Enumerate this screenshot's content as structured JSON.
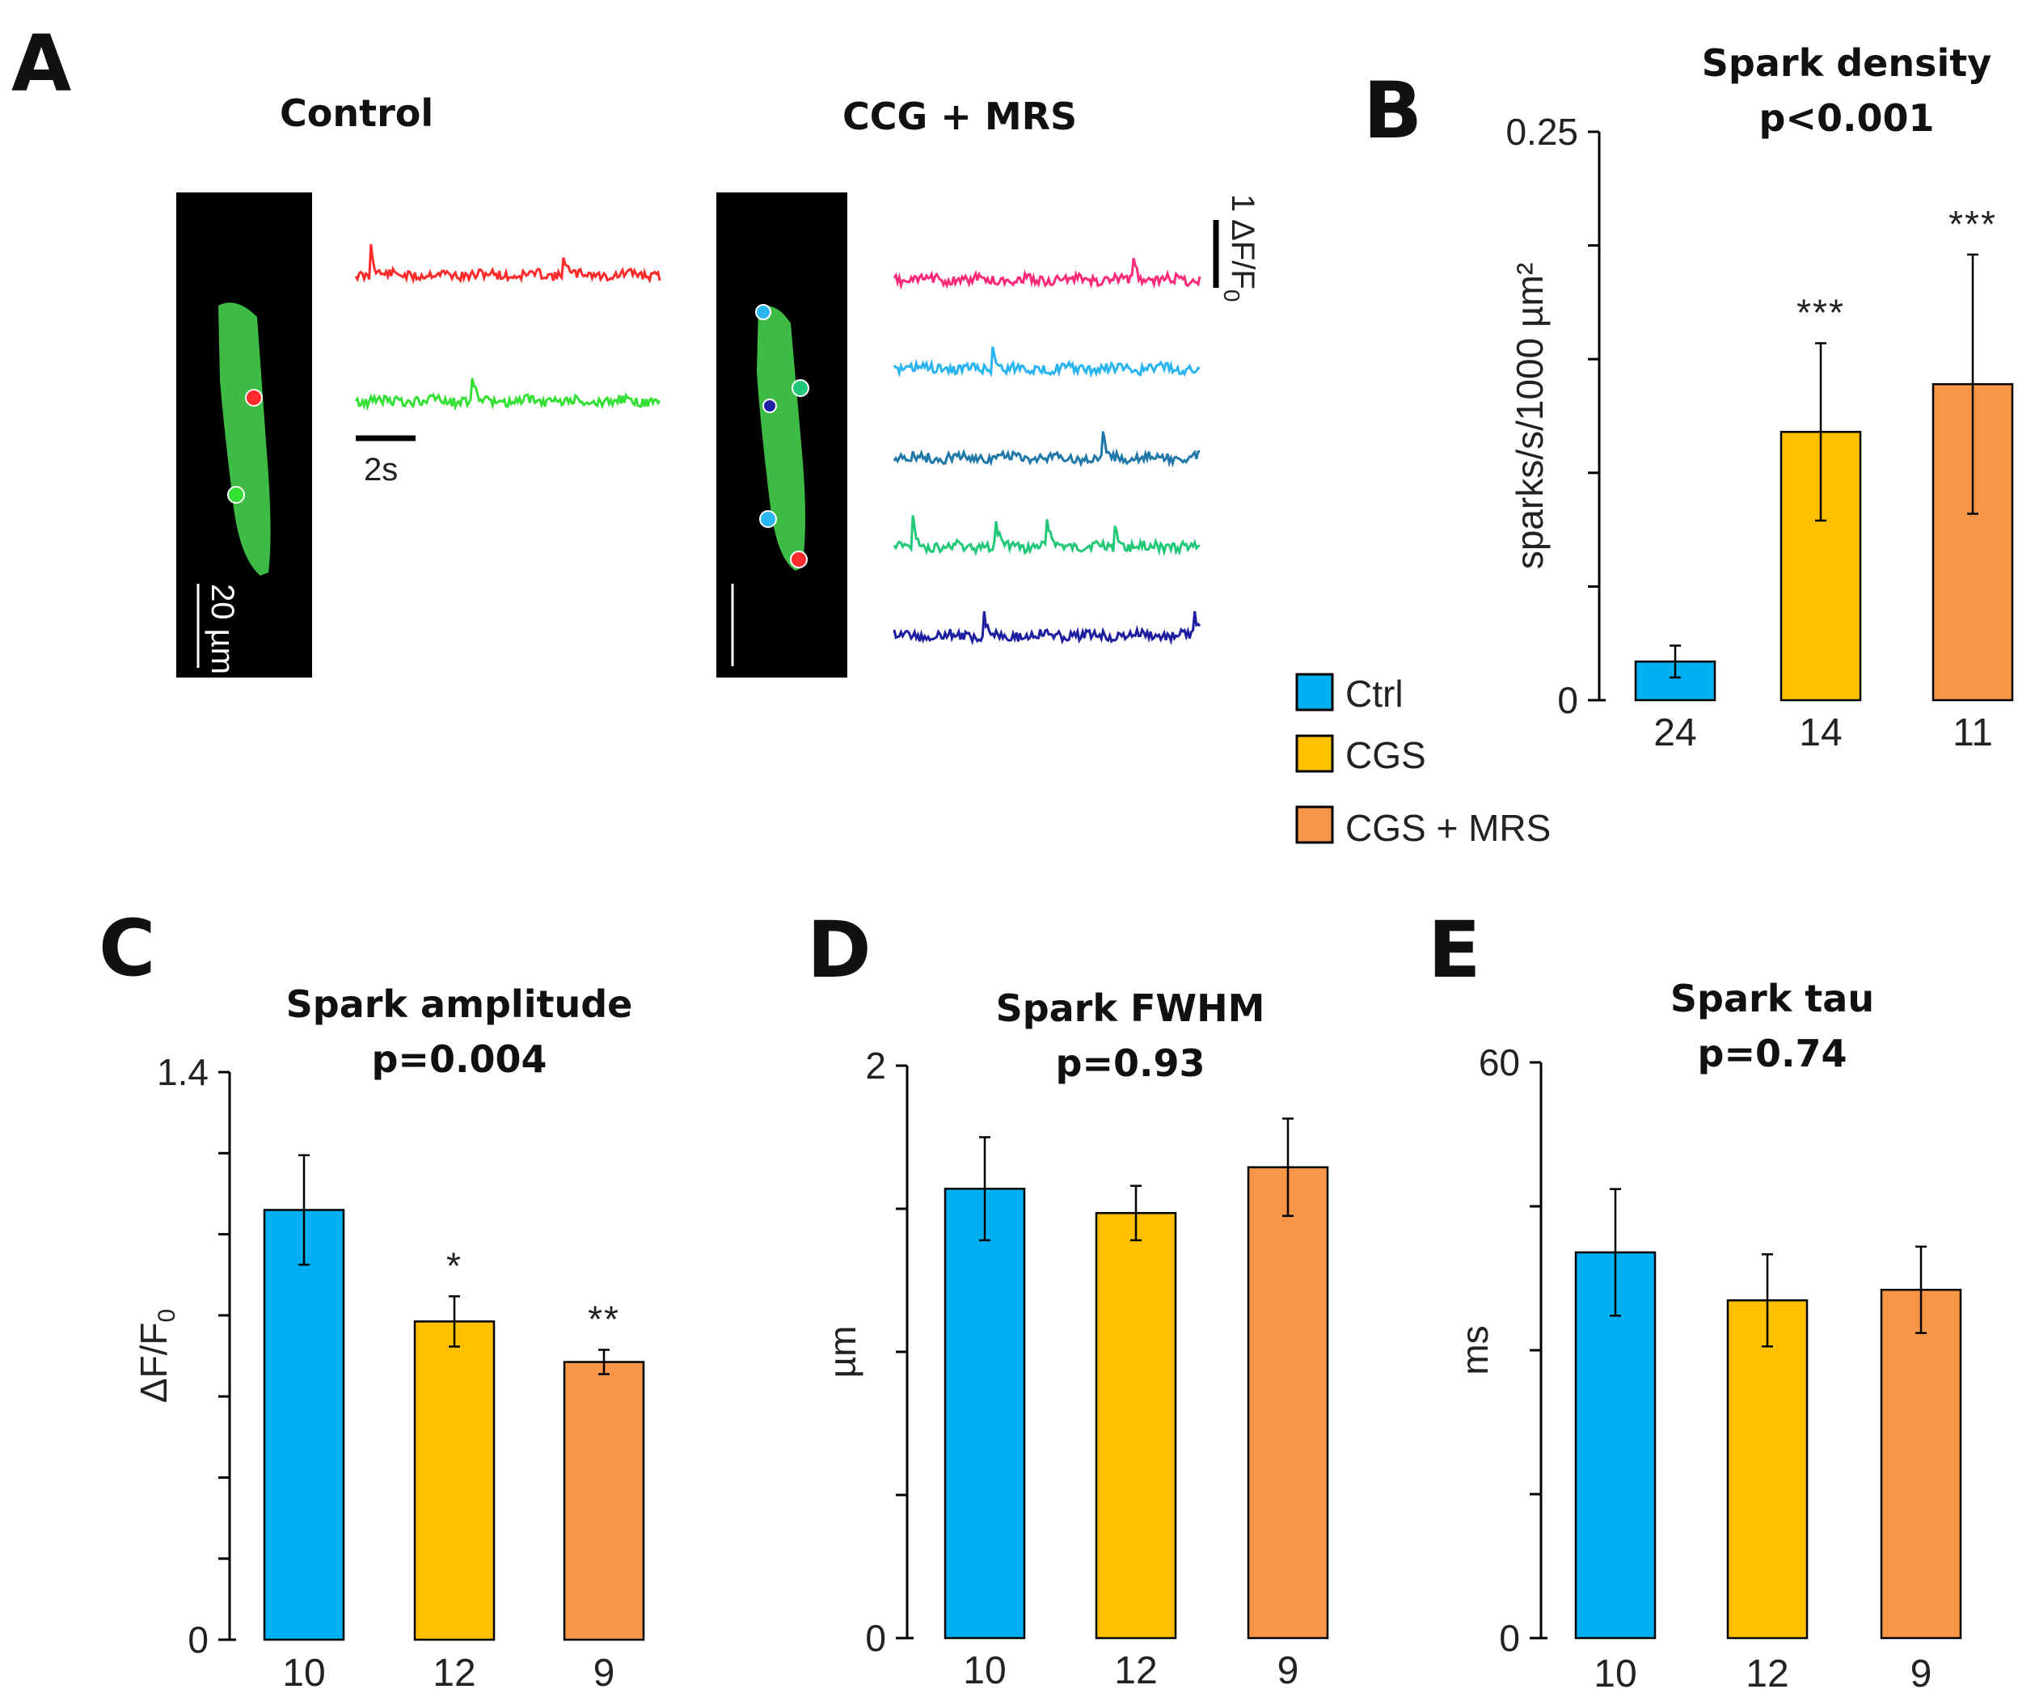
{
  "colors": {
    "ctrl": "#00B0F0",
    "cgs": "#FFC000",
    "cgs_mrs": "#F79646",
    "axis": "#000000"
  },
  "panel_a": {
    "letter": "A",
    "control_label": "Control",
    "ccg_label": "CCG + MRS",
    "scale_time": "2s",
    "scale_amp": "1 ΔF/F",
    "scale_amp_sub": "0",
    "scale_length": "20 µm",
    "control_traces": [
      {
        "color": "#FF2A2A",
        "spikes": [
          0.05,
          0.68
        ]
      },
      {
        "color": "#33E033",
        "spikes": [
          0.38
        ]
      }
    ],
    "ccg_traces": [
      {
        "color": "#FF2A7A",
        "spikes": [
          0.78
        ]
      },
      {
        "color": "#2AB4F0",
        "spikes": [
          0.32
        ]
      },
      {
        "color": "#1F78A8",
        "spikes": [
          0.68
        ]
      },
      {
        "color": "#22C878",
        "spikes": [
          0.06,
          0.33,
          0.5,
          0.72
        ]
      },
      {
        "color": "#1E1EA0",
        "spikes": [
          0.29,
          0.98
        ]
      }
    ]
  },
  "legend": [
    {
      "label": "Ctrl",
      "color": "#00B0F0"
    },
    {
      "label": "CGS",
      "color": "#FFC000"
    },
    {
      "label": "CGS + MRS",
      "color": "#F79646"
    }
  ],
  "chart_data": [
    {
      "panel": "B",
      "type": "bar",
      "title": "Spark density",
      "subtitle": "p<0.001",
      "ylabel": "sparks/s/1000 µm²",
      "ylim": [
        0,
        0.25
      ],
      "tick_labels": [
        "0.25",
        "",
        "",
        "",
        "",
        "0"
      ],
      "categories": [
        "Ctrl",
        "CGS",
        "CGS + MRS"
      ],
      "counts": [
        "24",
        "14",
        "11"
      ],
      "values": [
        0.017,
        0.118,
        0.139
      ],
      "errors": [
        0.007,
        0.039,
        0.057
      ],
      "stars": [
        "",
        "***",
        "***"
      ]
    },
    {
      "panel": "C",
      "type": "bar",
      "title": "Spark amplitude",
      "subtitle": "p=0.004",
      "ylabel": "ΔF/F",
      "ylabel_sub": "0",
      "ylim": [
        0,
        1.4
      ],
      "tick_labels": [
        "1.4",
        "",
        "",
        "",
        "",
        "",
        "",
        "0"
      ],
      "categories": [
        "Ctrl",
        "CGS",
        "CGS + MRS"
      ],
      "counts": [
        "10",
        "12",
        "9"
      ],
      "values": [
        1.06,
        0.785,
        0.685
      ],
      "errors": [
        0.135,
        0.062,
        0.03
      ],
      "stars": [
        "",
        "*",
        "**"
      ]
    },
    {
      "panel": "D",
      "type": "bar",
      "title": "Spark FWHM",
      "subtitle": "p=0.93",
      "ylabel": "µm",
      "ylim": [
        0,
        2
      ],
      "tick_labels": [
        "2",
        "",
        "",
        "",
        "0"
      ],
      "categories": [
        "Ctrl",
        "CGS",
        "CGS + MRS"
      ],
      "counts": [
        "10",
        "12",
        "9"
      ],
      "values": [
        1.57,
        1.485,
        1.645
      ],
      "errors": [
        0.18,
        0.095,
        0.17
      ],
      "stars": [
        "",
        "",
        ""
      ]
    },
    {
      "panel": "E",
      "type": "bar",
      "title": "Spark tau",
      "subtitle": "p=0.74",
      "ylabel": "ms",
      "ylim": [
        0,
        60
      ],
      "tick_labels": [
        "60",
        "",
        "",
        "",
        "0"
      ],
      "categories": [
        "Ctrl",
        "CGS",
        "CGS + MRS"
      ],
      "counts": [
        "10",
        "12",
        "9"
      ],
      "values": [
        40.2,
        35.2,
        36.3
      ],
      "errors": [
        6.6,
        4.8,
        4.5
      ],
      "stars": [
        "",
        "",
        ""
      ]
    }
  ]
}
